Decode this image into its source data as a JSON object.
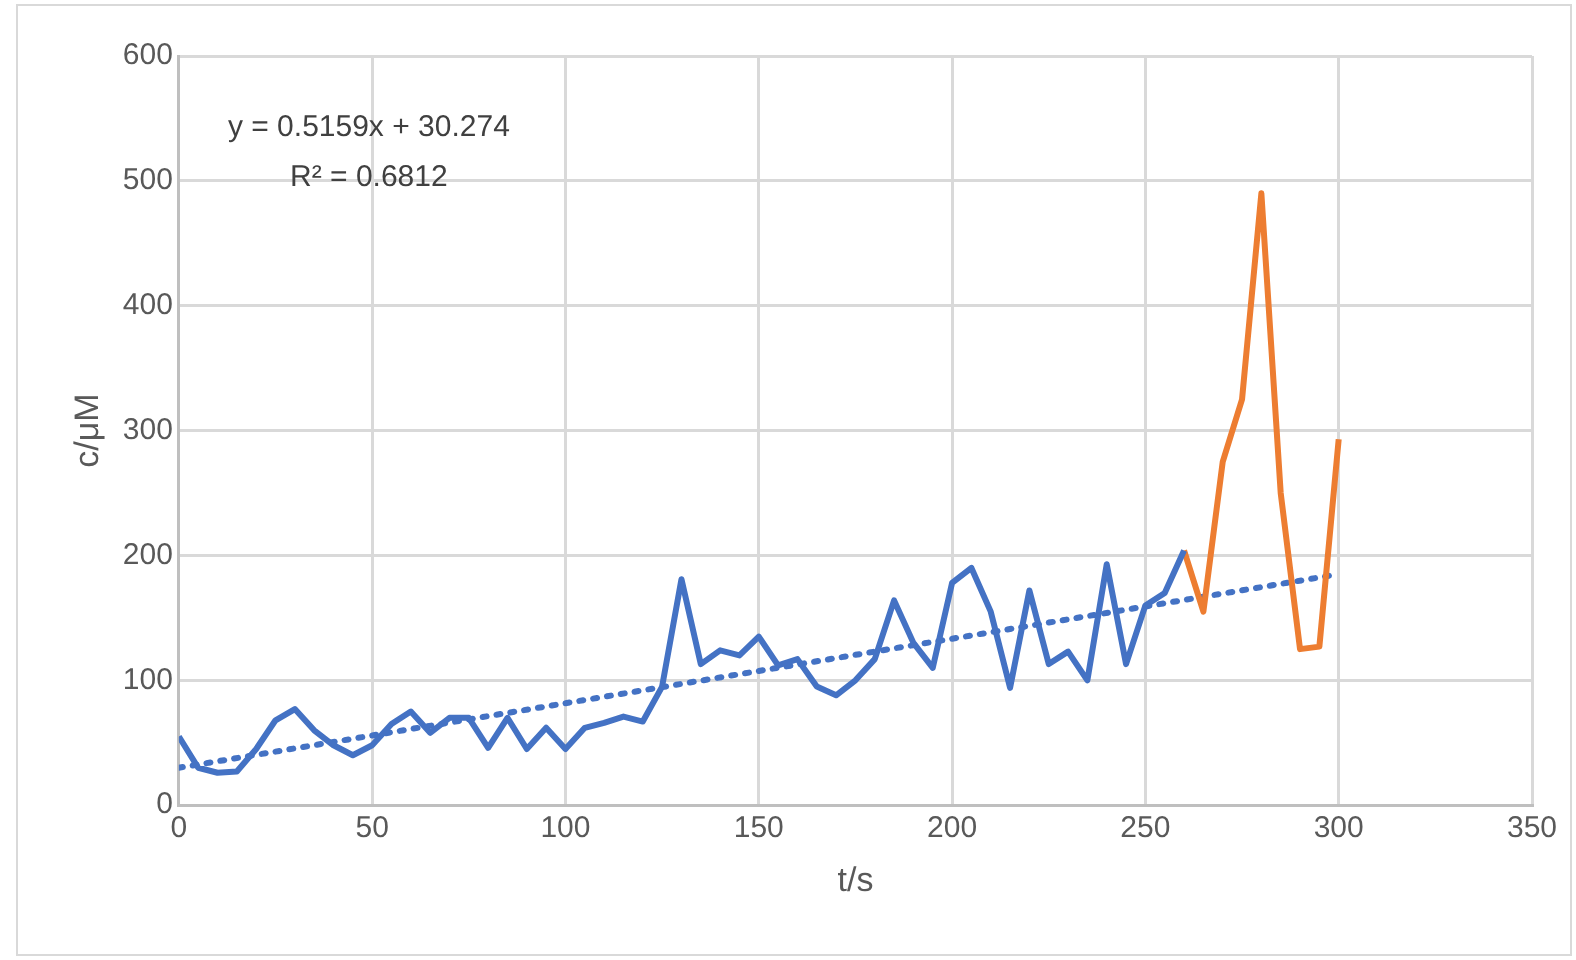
{
  "chart_data": {
    "type": "line",
    "xlabel": "t/s",
    "ylabel": "c/μM",
    "xlim": [
      0,
      350
    ],
    "xticks": [
      0,
      50,
      100,
      150,
      200,
      250,
      300,
      350
    ],
    "ylim": [
      0,
      600
    ],
    "yticks": [
      0,
      100,
      200,
      300,
      400,
      500,
      600
    ],
    "grid": true,
    "legend": false,
    "marker": "none",
    "annotations": [
      "y = 0.5159x + 30.274",
      "R² = 0.6812"
    ],
    "series": [
      {
        "color": "#4472c4",
        "x": [
          0,
          5,
          10,
          15,
          20,
          25,
          30,
          35,
          40,
          45,
          50,
          55,
          60,
          65,
          70,
          75,
          80,
          85,
          90,
          95,
          100,
          105,
          110,
          115,
          120,
          125,
          130,
          135,
          140,
          145,
          150,
          155,
          160,
          165,
          170,
          175,
          180,
          185,
          190,
          195,
          200,
          205,
          210,
          215,
          220,
          225,
          230,
          235,
          240,
          245,
          250,
          255,
          260
        ],
        "values": [
          55,
          30,
          26,
          27,
          45,
          68,
          77,
          60,
          48,
          40,
          48,
          65,
          75,
          58,
          70,
          70,
          46,
          70,
          45,
          62,
          45,
          62,
          66,
          71,
          67,
          95,
          181,
          113,
          124,
          120,
          135,
          112,
          117,
          95,
          88,
          100,
          117,
          164,
          130,
          110,
          178,
          190,
          155,
          94,
          172,
          113,
          123,
          100,
          193,
          113,
          160,
          170,
          204
        ]
      },
      {
        "color": "#ed7d31",
        "x": [
          260,
          265,
          270,
          275,
          280,
          285,
          290,
          295,
          300
        ],
        "values": [
          204,
          155,
          275,
          325,
          490,
          250,
          125,
          127,
          293
        ]
      },
      {
        "line_style": "dotted",
        "color": "#4472c4",
        "x": [
          0,
          300
        ],
        "values": [
          30,
          185
        ]
      }
    ]
  }
}
